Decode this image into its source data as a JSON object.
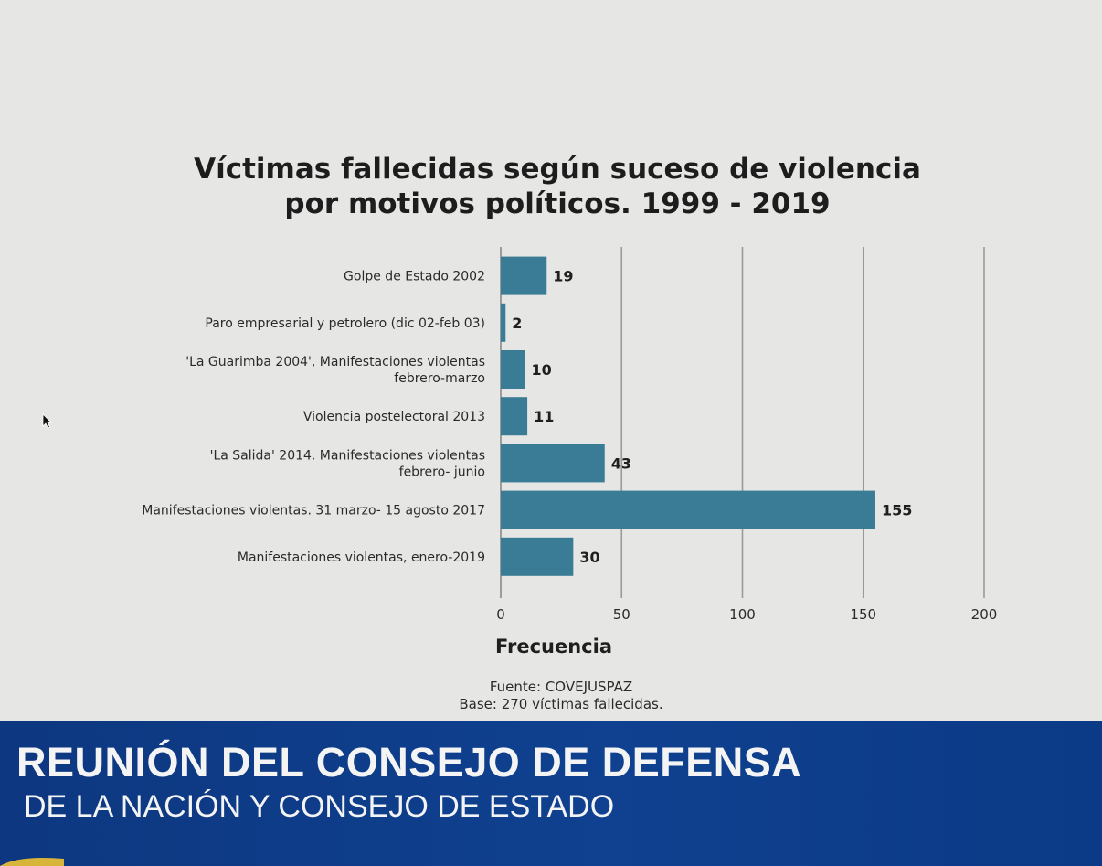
{
  "chart_data": {
    "type": "bar",
    "orientation": "horizontal",
    "title": "Víctimas fallecidas según suceso de violencia por motivos políticos. 1999 - 2019",
    "title_lines": [
      "Víctimas fallecidas según suceso de violencia",
      "por motivos políticos. 1999 - 2019"
    ],
    "categories": [
      [
        "Golpe de Estado 2002"
      ],
      [
        "Paro empresarial y petrolero (dic 02-feb 03)"
      ],
      [
        "'La Guarimba 2004', Manifestaciones violentas",
        "febrero-marzo"
      ],
      [
        "Violencia postelectoral 2013"
      ],
      [
        "'La Salida' 2014. Manifestaciones violentas",
        "febrero- junio"
      ],
      [
        "Manifestaciones violentas. 31 marzo- 15 agosto 2017"
      ],
      [
        "Manifestaciones violentas, enero-2019"
      ]
    ],
    "values": [
      19,
      2,
      10,
      11,
      43,
      155,
      30
    ],
    "xlabel": "Frecuencia",
    "ylabel": "",
    "xlim": [
      0,
      200
    ],
    "xticks": [
      0,
      50,
      100,
      150,
      200
    ],
    "grid": "vertical",
    "bar_color": "#3a7c96",
    "source_lines": [
      "Fuente: COVEJUSPAZ",
      "Base: 270 víctimas fallecidas."
    ]
  },
  "banner": {
    "line1": "REUNIÓN DEL CONSEJO DE DEFENSA",
    "line2": "DE LA NACIÓN Y CONSEJO DE ESTADO",
    "color": "#0f4190"
  }
}
